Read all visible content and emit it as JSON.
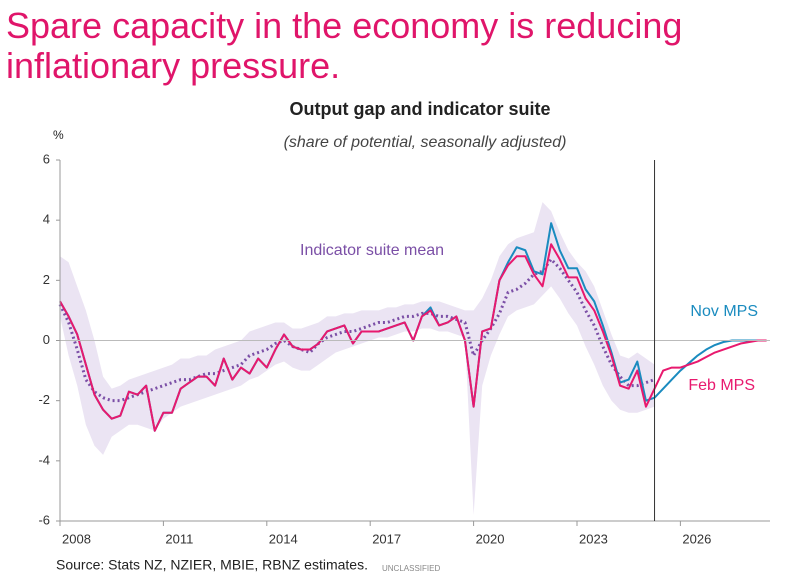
{
  "chart_data": {
    "type": "line",
    "headline": "Spare capacity in the economy is reducing inflationary pressure.",
    "title": "Output gap and indicator suite",
    "subtitle": "(share of potential, seasonally adjusted)",
    "y_unit": "%",
    "source": "Source: Stats NZ, NZIER, MBIE, RBNZ estimates.",
    "classification": "UNCLASSIFIED",
    "xlim": [
      2008,
      2028.6
    ],
    "xticks": [
      2008,
      2011,
      2014,
      2017,
      2020,
      2023,
      2026
    ],
    "ylim": [
      -6,
      6
    ],
    "yticks": [
      -6,
      -4,
      -2,
      0,
      2,
      4,
      6
    ],
    "vline": 2025.25,
    "x": [
      2008,
      2008.25,
      2008.5,
      2008.75,
      2009,
      2009.25,
      2009.5,
      2009.75,
      2010,
      2010.25,
      2010.5,
      2010.75,
      2011,
      2011.25,
      2011.5,
      2011.75,
      2012,
      2012.25,
      2012.5,
      2012.75,
      2013,
      2013.25,
      2013.5,
      2013.75,
      2014,
      2014.25,
      2014.5,
      2014.75,
      2015,
      2015.25,
      2015.5,
      2015.75,
      2016,
      2016.25,
      2016.5,
      2016.75,
      2017,
      2017.25,
      2017.5,
      2017.75,
      2018,
      2018.25,
      2018.5,
      2018.75,
      2019,
      2019.25,
      2019.5,
      2019.75,
      2020,
      2020.25,
      2020.5,
      2020.75,
      2021,
      2021.25,
      2021.5,
      2021.75,
      2022,
      2022.25,
      2022.5,
      2022.75,
      2023,
      2023.25,
      2023.5,
      2023.75,
      2024,
      2024.25,
      2024.5,
      2024.75,
      2025,
      2025.25,
      2025.5,
      2025.75,
      2026,
      2026.25,
      2026.5,
      2026.75,
      2027,
      2027.25,
      2027.5,
      2027.75,
      2028,
      2028.25,
      2028.5
    ],
    "range": {
      "color": "#ebe4f3",
      "upper": [
        2.8,
        2.6,
        1.8,
        1.0,
        0.0,
        -1.2,
        -1.6,
        -1.5,
        -1.3,
        -1.2,
        -1.1,
        -1.0,
        -0.9,
        -0.8,
        -0.6,
        -0.6,
        -0.5,
        -0.5,
        -0.3,
        -0.2,
        -0.1,
        0.0,
        0.3,
        0.4,
        0.5,
        0.6,
        0.6,
        0.4,
        0.4,
        0.5,
        0.6,
        0.8,
        0.8,
        0.9,
        0.9,
        1.0,
        1.0,
        1.0,
        1.1,
        1.1,
        1.2,
        1.2,
        1.3,
        1.3,
        1.3,
        1.2,
        1.1,
        1.0,
        1.0,
        1.4,
        2.0,
        2.8,
        3.2,
        3.4,
        3.5,
        3.6,
        4.6,
        4.3,
        3.6,
        3.0,
        2.6,
        2.3,
        1.8,
        1.0,
        0.2,
        -0.5,
        -0.6,
        -0.4,
        -0.6,
        -0.8,
        null,
        null,
        null,
        null,
        null,
        null,
        null,
        null,
        null,
        null,
        null,
        null,
        null
      ],
      "lower": [
        0.8,
        -0.5,
        -1.5,
        -2.8,
        -3.5,
        -3.8,
        -3.2,
        -3.0,
        -2.8,
        -2.8,
        -2.9,
        -3.0,
        -2.6,
        -2.4,
        -2.2,
        -2.1,
        -2.0,
        -1.9,
        -1.8,
        -1.7,
        -1.6,
        -1.5,
        -1.3,
        -1.2,
        -1.0,
        -0.8,
        -0.7,
        -0.9,
        -1.0,
        -1.0,
        -0.8,
        -0.6,
        -0.4,
        -0.3,
        -0.2,
        -0.1,
        0.0,
        0.1,
        0.1,
        0.2,
        0.3,
        0.3,
        0.4,
        0.4,
        0.3,
        0.3,
        0.2,
        0.1,
        -5.8,
        -1.5,
        -0.5,
        0.2,
        0.8,
        1.0,
        1.1,
        1.2,
        1.5,
        1.8,
        1.4,
        0.9,
        0.5,
        -0.2,
        -0.8,
        -1.5,
        -2.0,
        -2.3,
        -2.4,
        -2.4,
        -2.3,
        -2.2,
        null,
        null,
        null,
        null,
        null,
        null,
        null,
        null,
        null,
        null,
        null,
        null,
        null
      ]
    },
    "series": [
      {
        "name": "Indicator suite mean",
        "color": "#7b4fa6",
        "dash": true,
        "values": [
          1.2,
          0.6,
          -0.3,
          -1.3,
          -1.7,
          -1.9,
          -2.0,
          -2.0,
          -1.9,
          -1.8,
          -1.7,
          -1.6,
          -1.5,
          -1.4,
          -1.3,
          -1.3,
          -1.2,
          -1.1,
          -1.1,
          -1.0,
          -0.9,
          -0.8,
          -0.5,
          -0.4,
          -0.3,
          -0.1,
          0.0,
          -0.2,
          -0.3,
          -0.4,
          -0.1,
          0.1,
          0.2,
          0.3,
          0.3,
          0.4,
          0.5,
          0.6,
          0.6,
          0.7,
          0.8,
          0.8,
          0.9,
          0.9,
          0.8,
          0.8,
          0.7,
          0.6,
          -0.5,
          0.0,
          0.4,
          0.9,
          1.6,
          1.7,
          1.9,
          2.2,
          2.3,
          2.7,
          2.4,
          2.0,
          1.6,
          1.0,
          0.5,
          -0.2,
          -0.8,
          -1.2,
          -1.5,
          -1.5,
          -1.4,
          -1.3,
          null,
          null,
          null,
          null,
          null,
          null,
          null,
          null,
          null,
          null,
          null,
          null,
          null
        ]
      },
      {
        "name": "Nov MPS",
        "color": "#1a8bbf",
        "values": [
          1.3,
          0.8,
          0.2,
          -0.8,
          -1.8,
          -2.3,
          -2.6,
          -2.5,
          -1.7,
          -1.8,
          -1.5,
          -3.0,
          -2.4,
          -2.4,
          -1.6,
          -1.4,
          -1.2,
          -1.2,
          -1.5,
          -0.6,
          -1.3,
          -0.9,
          -1.1,
          -0.6,
          -0.9,
          -0.3,
          0.2,
          -0.2,
          -0.3,
          -0.3,
          -0.1,
          0.3,
          0.4,
          0.5,
          -0.1,
          0.3,
          0.3,
          0.3,
          0.4,
          0.5,
          0.6,
          0.0,
          0.8,
          1.1,
          0.5,
          0.6,
          0.8,
          0.0,
          -2.2,
          0.3,
          0.4,
          2.0,
          2.6,
          3.1,
          3.0,
          2.3,
          2.2,
          3.9,
          3.0,
          2.4,
          2.4,
          1.7,
          1.3,
          0.5,
          -0.4,
          -1.4,
          -1.3,
          -0.7,
          -2.0,
          -1.9,
          -1.6,
          -1.3,
          -1.0,
          -0.75,
          -0.5,
          -0.3,
          -0.15,
          -0.05,
          0.0,
          0.0,
          0.0,
          0.0,
          0.0
        ]
      },
      {
        "name": "Feb MPS",
        "color": "#e8196e",
        "values": [
          1.3,
          0.8,
          0.2,
          -0.8,
          -1.8,
          -2.3,
          -2.6,
          -2.5,
          -1.7,
          -1.8,
          -1.5,
          -3.0,
          -2.4,
          -2.4,
          -1.6,
          -1.4,
          -1.2,
          -1.2,
          -1.5,
          -0.6,
          -1.3,
          -0.9,
          -1.1,
          -0.6,
          -0.9,
          -0.3,
          0.2,
          -0.2,
          -0.3,
          -0.3,
          -0.1,
          0.3,
          0.4,
          0.5,
          -0.1,
          0.3,
          0.3,
          0.3,
          0.4,
          0.5,
          0.6,
          0.0,
          0.8,
          1.0,
          0.5,
          0.6,
          0.8,
          0.0,
          -2.2,
          0.3,
          0.4,
          2.0,
          2.5,
          2.8,
          2.8,
          2.2,
          1.8,
          3.2,
          2.7,
          2.1,
          2.1,
          1.4,
          1.0,
          0.3,
          -0.5,
          -1.5,
          -1.6,
          -1.0,
          -2.2,
          -1.6,
          -1.0,
          -0.9,
          -0.9,
          -0.8,
          -0.7,
          -0.55,
          -0.4,
          -0.3,
          -0.2,
          -0.1,
          -0.05,
          0.0,
          0.0
        ]
      }
    ]
  }
}
